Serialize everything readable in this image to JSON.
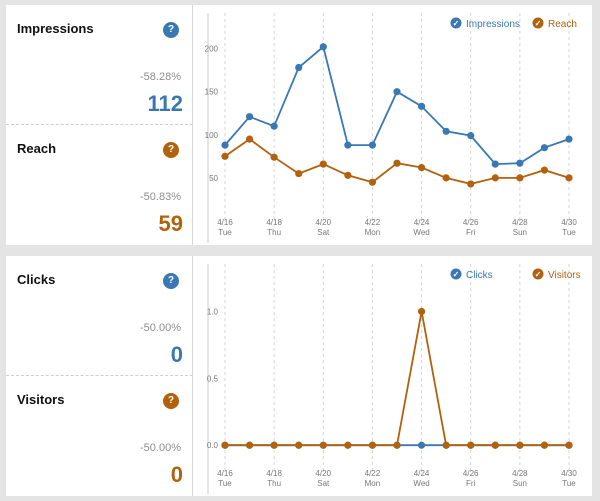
{
  "panels": [
    {
      "metrics": [
        {
          "label": "Impressions",
          "pct": "-58.28%",
          "value": "112",
          "color": "blue"
        },
        {
          "label": "Reach",
          "pct": "-50.83%",
          "value": "59",
          "color": "orange"
        }
      ],
      "help_glyph": "?"
    },
    {
      "metrics": [
        {
          "label": "Clicks",
          "pct": "-50.00%",
          "value": "0",
          "color": "blue"
        },
        {
          "label": "Visitors",
          "pct": "-50.00%",
          "value": "0",
          "color": "orange"
        }
      ],
      "help_glyph": "?"
    }
  ],
  "colors": {
    "blue": "#3a78b3",
    "orange": "#b2610d"
  },
  "legend_check_glyph": "✓",
  "chart_data": [
    {
      "type": "line",
      "x": [
        "4/16",
        "4/17",
        "4/18",
        "4/19",
        "4/20",
        "4/21",
        "4/22",
        "4/23",
        "4/24",
        "4/25",
        "4/26",
        "4/27",
        "4/28",
        "4/29",
        "4/30"
      ],
      "tick_labels": [
        {
          "date": "4/16",
          "day": "Tue"
        },
        {
          "date": "4/18",
          "day": "Thu"
        },
        {
          "date": "4/20",
          "day": "Sat"
        },
        {
          "date": "4/22",
          "day": "Mon"
        },
        {
          "date": "4/24",
          "day": "Wed"
        },
        {
          "date": "4/26",
          "day": "Fri"
        },
        {
          "date": "4/28",
          "day": "Sun"
        },
        {
          "date": "4/30",
          "day": "Tue"
        }
      ],
      "tick_every": 2,
      "yticks": [
        "50",
        "100",
        "150",
        "200"
      ],
      "ytick_values": [
        50,
        100,
        150,
        200
      ],
      "ylim": [
        0,
        225
      ],
      "grid": "vertical dashed",
      "legend_position": "top-right",
      "series": [
        {
          "name": "Impressions",
          "color": "#3a78b3",
          "values": [
            88,
            121,
            110,
            178,
            202,
            88,
            88,
            150,
            133,
            104,
            99,
            66,
            67,
            85,
            95
          ]
        },
        {
          "name": "Reach",
          "color": "#b2610d",
          "values": [
            75,
            95,
            74,
            55,
            66,
            53,
            45,
            67,
            62,
            50,
            43,
            50,
            50,
            59,
            50
          ]
        }
      ]
    },
    {
      "type": "line",
      "x": [
        "4/16",
        "4/17",
        "4/18",
        "4/19",
        "4/20",
        "4/21",
        "4/22",
        "4/23",
        "4/24",
        "4/25",
        "4/26",
        "4/27",
        "4/28",
        "4/29",
        "4/30"
      ],
      "tick_labels": [
        {
          "date": "4/16",
          "day": "Tue"
        },
        {
          "date": "4/18",
          "day": "Thu"
        },
        {
          "date": "4/20",
          "day": "Sat"
        },
        {
          "date": "4/22",
          "day": "Mon"
        },
        {
          "date": "4/24",
          "day": "Wed"
        },
        {
          "date": "4/26",
          "day": "Fri"
        },
        {
          "date": "4/28",
          "day": "Sun"
        },
        {
          "date": "4/30",
          "day": "Tue"
        }
      ],
      "tick_every": 2,
      "yticks": [
        "0.0",
        "0.5",
        "1.0"
      ],
      "ytick_values": [
        0,
        0.5,
        1.0
      ],
      "ylim": [
        -0.2,
        1.25
      ],
      "grid": "vertical dashed",
      "legend_position": "top-right",
      "series": [
        {
          "name": "Clicks",
          "color": "#3a78b3",
          "values": [
            0,
            0,
            0,
            0,
            0,
            0,
            0,
            0,
            0,
            0,
            0,
            0,
            0,
            0,
            0
          ]
        },
        {
          "name": "Visitors",
          "color": "#b2610d",
          "values": [
            0,
            0,
            0,
            0,
            0,
            0,
            0,
            0,
            1,
            0,
            0,
            0,
            0,
            0,
            0
          ]
        }
      ]
    }
  ]
}
